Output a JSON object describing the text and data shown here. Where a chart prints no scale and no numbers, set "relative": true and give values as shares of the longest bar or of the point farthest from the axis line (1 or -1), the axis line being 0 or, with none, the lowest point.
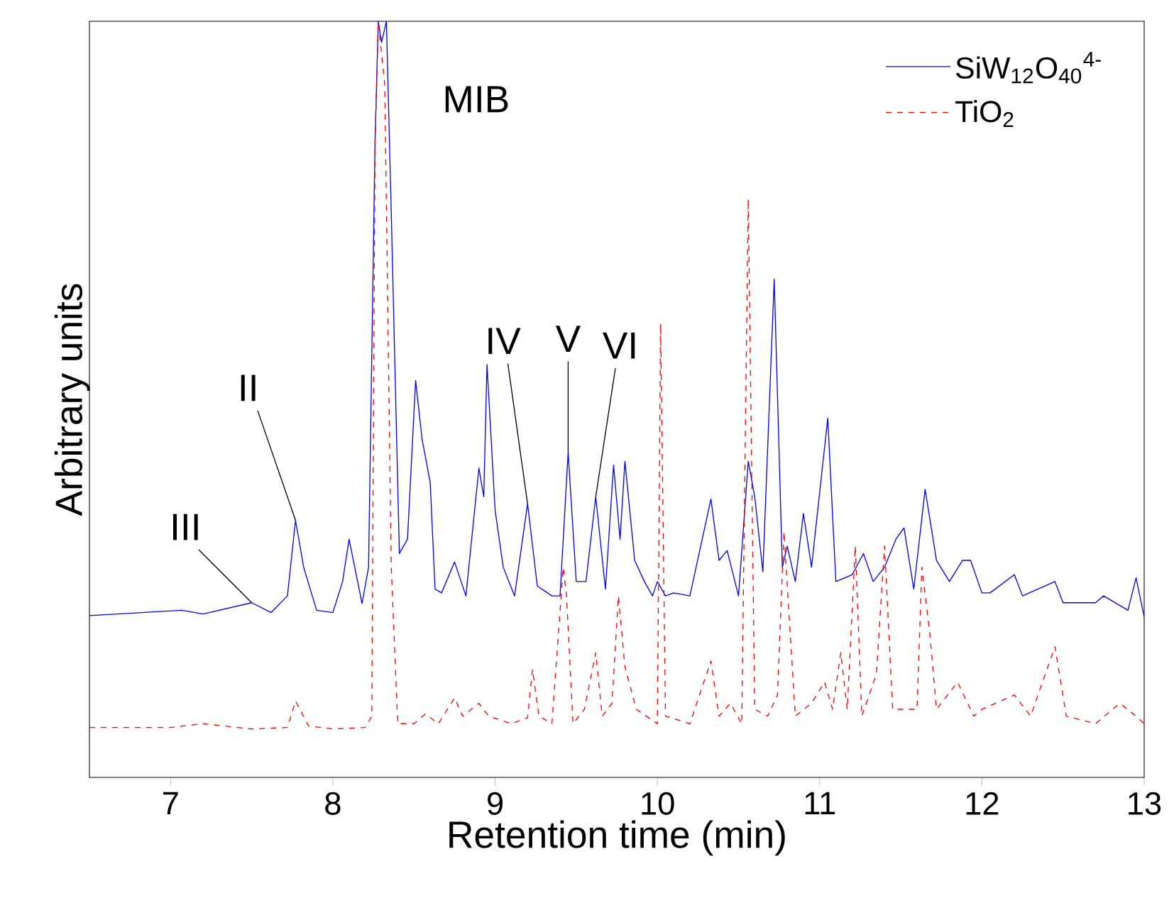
{
  "chart_data": {
    "type": "line",
    "relative": true,
    "xlabel": "Retention time (min)",
    "ylabel": "Arbitrary  units",
    "xlim": [
      6.5,
      13
    ],
    "xticks": [
      7,
      8,
      9,
      10,
      11,
      12,
      13
    ],
    "legend": "top right",
    "marker": "none",
    "series": [
      {
        "name": "SiW$_{12}$O$_{40}$$^{4-}$",
        "color": "#0000ff",
        "line_style": "solid",
        "x": [
          6.5,
          7.07,
          7.2,
          7.5,
          7.62,
          7.72,
          7.77,
          7.82,
          7.9,
          8.0,
          8.06,
          8.1,
          8.18,
          8.22,
          8.26,
          8.28,
          8.3,
          8.33,
          8.36,
          8.41,
          8.46,
          8.51,
          8.55,
          8.6,
          8.63,
          8.67,
          8.75,
          8.82,
          8.9,
          8.93,
          8.95,
          9.0,
          9.05,
          9.12,
          9.2,
          9.26,
          9.35,
          9.4,
          9.45,
          9.5,
          9.56,
          9.62,
          9.68,
          9.73,
          9.77,
          9.8,
          9.86,
          9.92,
          9.97,
          10.0,
          10.05,
          10.1,
          10.2,
          10.33,
          10.38,
          10.43,
          10.5,
          10.56,
          10.6,
          10.65,
          10.72,
          10.77,
          10.8,
          10.85,
          10.9,
          10.95,
          11.05,
          11.1,
          11.2,
          11.27,
          11.33,
          11.4,
          11.47,
          11.52,
          11.58,
          11.65,
          11.72,
          11.8,
          11.88,
          11.93,
          12.0,
          12.05,
          12.2,
          12.25,
          12.45,
          12.5,
          12.7,
          12.75,
          12.9,
          12.95,
          13.0
        ],
        "values": [
          0.214,
          0.221,
          0.216,
          0.231,
          0.218,
          0.24,
          0.34,
          0.278,
          0.221,
          0.218,
          0.259,
          0.315,
          0.23,
          0.278,
          0.84,
          1.0,
          0.972,
          1.0,
          0.747,
          0.296,
          0.315,
          0.525,
          0.447,
          0.39,
          0.249,
          0.244,
          0.285,
          0.24,
          0.409,
          0.371,
          0.546,
          0.353,
          0.278,
          0.24,
          0.362,
          0.253,
          0.24,
          0.24,
          0.43,
          0.259,
          0.259,
          0.371,
          0.249,
          0.413,
          0.315,
          0.418,
          0.287,
          0.259,
          0.24,
          0.259,
          0.24,
          0.244,
          0.24,
          0.368,
          0.287,
          0.3,
          0.24,
          0.418,
          0.371,
          0.272,
          0.659,
          0.278,
          0.306,
          0.259,
          0.349,
          0.278,
          0.475,
          0.259,
          0.268,
          0.296,
          0.259,
          0.278,
          0.315,
          0.33,
          0.249,
          0.381,
          0.287,
          0.259,
          0.287,
          0.287,
          0.244,
          0.244,
          0.268,
          0.24,
          0.259,
          0.231,
          0.231,
          0.24,
          0.221,
          0.264,
          0.212
        ]
      },
      {
        "name": "TiO$_{2}$",
        "color": "#ff0000",
        "line_style": "dashed",
        "x": [
          6.5,
          7.0,
          7.2,
          7.5,
          7.72,
          7.77,
          7.85,
          8.0,
          8.2,
          8.24,
          8.26,
          8.28,
          8.32,
          8.36,
          8.4,
          8.5,
          8.57,
          8.65,
          8.75,
          8.8,
          8.9,
          8.96,
          9.1,
          9.2,
          9.23,
          9.27,
          9.35,
          9.42,
          9.44,
          9.48,
          9.55,
          9.62,
          9.66,
          9.72,
          9.76,
          9.8,
          9.87,
          10.0,
          10.02,
          10.05,
          10.2,
          10.33,
          10.38,
          10.45,
          10.52,
          10.56,
          10.6,
          10.68,
          10.74,
          10.78,
          10.85,
          10.9,
          10.95,
          11.03,
          11.08,
          11.13,
          11.17,
          11.22,
          11.26,
          11.35,
          11.4,
          11.45,
          11.6,
          11.63,
          11.68,
          11.72,
          11.85,
          11.95,
          12.0,
          12.2,
          12.3,
          12.45,
          12.52,
          12.7,
          12.85,
          12.95,
          13.0
        ],
        "values": [
          0.066,
          0.066,
          0.071,
          0.064,
          0.066,
          0.101,
          0.068,
          0.064,
          0.066,
          0.081,
          0.84,
          1.0,
          0.916,
          0.278,
          0.071,
          0.071,
          0.084,
          0.071,
          0.105,
          0.081,
          0.098,
          0.081,
          0.071,
          0.079,
          0.143,
          0.081,
          0.071,
          0.278,
          0.24,
          0.071,
          0.09,
          0.165,
          0.081,
          0.098,
          0.24,
          0.146,
          0.09,
          0.071,
          0.6,
          0.081,
          0.071,
          0.154,
          0.081,
          0.098,
          0.071,
          0.765,
          0.09,
          0.081,
          0.109,
          0.325,
          0.081,
          0.09,
          0.098,
          0.126,
          0.09,
          0.165,
          0.09,
          0.306,
          0.081,
          0.137,
          0.306,
          0.09,
          0.09,
          0.278,
          0.188,
          0.09,
          0.126,
          0.081,
          0.09,
          0.109,
          0.081,
          0.173,
          0.081,
          0.071,
          0.098,
          0.081,
          0.071
        ]
      }
    ],
    "annotations": [
      {
        "text": "III",
        "x": 7.5,
        "y": 0.231
      },
      {
        "text": "II",
        "x": 7.77,
        "y": 0.34
      },
      {
        "text": "MIB",
        "x": 8.3,
        "y": 0.972
      },
      {
        "text": "IV",
        "x": 9.2,
        "y": 0.362
      },
      {
        "text": "V",
        "x": 9.45,
        "y": 0.43
      },
      {
        "text": "VI",
        "x": 9.62,
        "y": 0.371
      }
    ]
  }
}
